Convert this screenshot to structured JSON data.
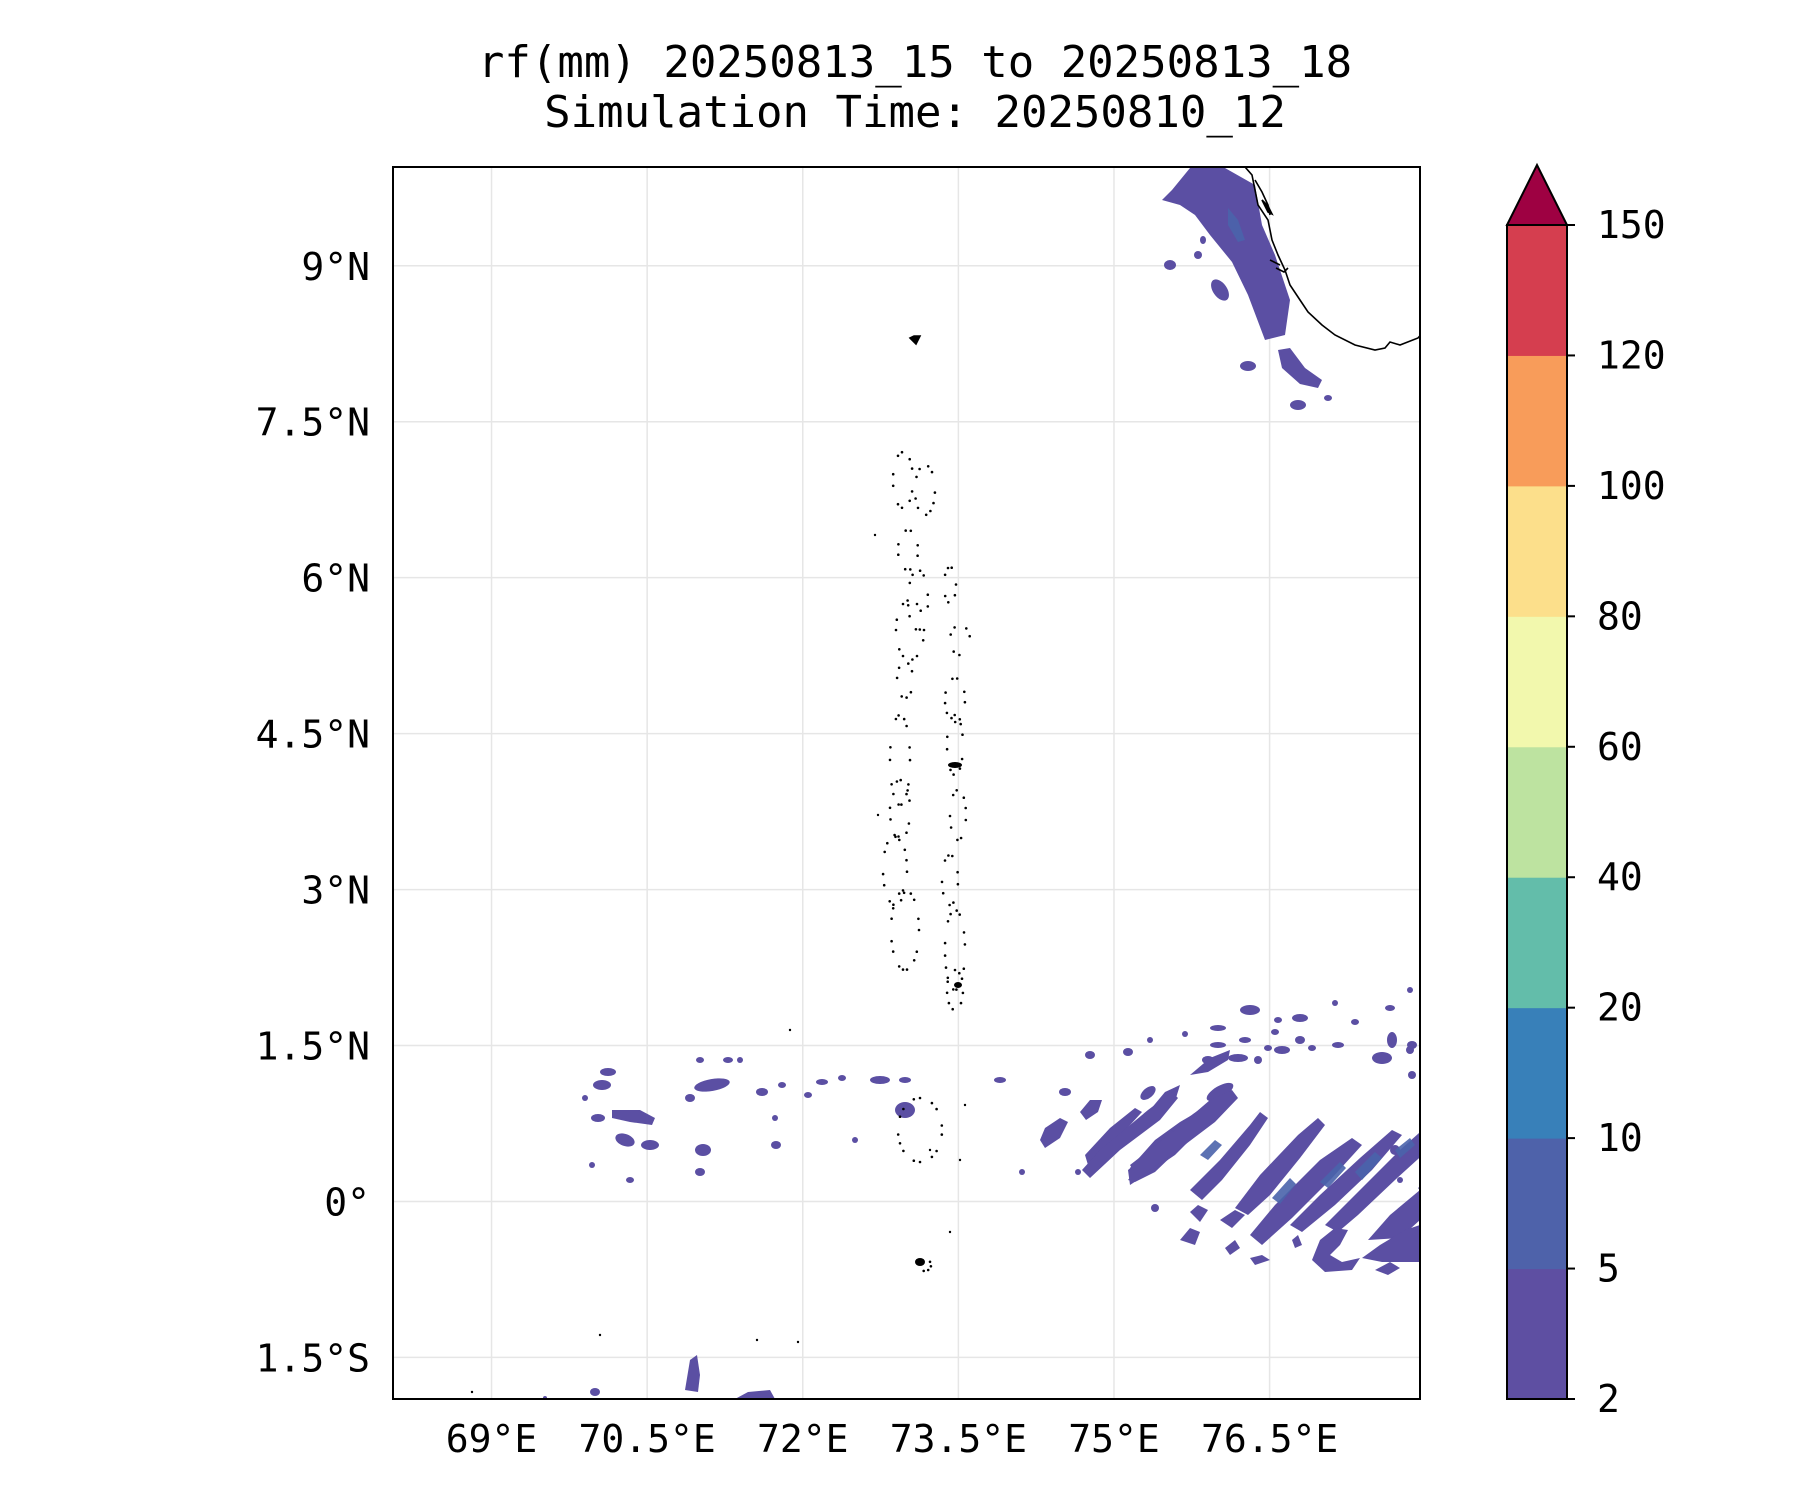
{
  "title": {
    "line1": "rf(mm) 20250813_15 to 20250813_18",
    "line2": "Simulation Time: 20250810_12"
  },
  "map": {
    "lat_labels": [
      "9°N",
      "7.5°N",
      "6°N",
      "4.5°N",
      "3°N",
      "1.5°N",
      "0°",
      "1.5°S"
    ],
    "lon_labels": [
      "69°E",
      "70.5°E",
      "72°E",
      "73.5°E",
      "75°E",
      "76.5°E"
    ],
    "lon_range": [
      68.05,
      77.95
    ],
    "lat_range": [
      -1.9,
      9.95
    ],
    "grid": true,
    "rain_color_main": "#5b4fa3",
    "rain_color_dense": "#4a63ab",
    "coast_color": "#000000"
  },
  "colorbar": {
    "levels": [
      "2",
      "5",
      "10",
      "20",
      "40",
      "60",
      "80",
      "100",
      "120",
      "150"
    ],
    "colors": [
      "#5e4fa2",
      "#4e62aa",
      "#3880b9",
      "#63bdaa",
      "#bde3a0",
      "#f2f8ad",
      "#fcdf8b",
      "#f89c5a",
      "#d53e4f"
    ],
    "extend_color": "#9e0142",
    "extend": "max"
  }
}
